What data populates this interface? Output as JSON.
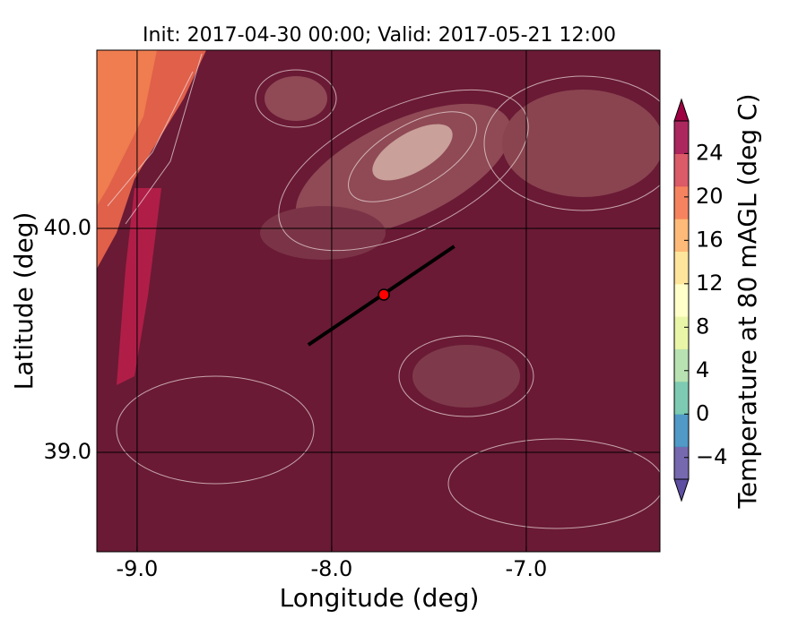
{
  "chart_data": {
    "type": "map",
    "title": "Init: 2017-04-30 00:00; Valid: 2017-05-21 12:00",
    "x_label": "Longitude (deg)",
    "y_label": "Latitude (deg)",
    "xlim": [
      -9.207,
      -6.313
    ],
    "ylim": [
      38.556,
      40.796
    ],
    "xticks": [
      {
        "value": -9,
        "label": "-9.0"
      },
      {
        "value": -8,
        "label": "-8.0"
      },
      {
        "value": -7,
        "label": "-7.0"
      }
    ],
    "yticks": [
      {
        "value": 39,
        "label": "39.0"
      },
      {
        "value": 40,
        "label": "40.0"
      }
    ],
    "grid": true,
    "cross_section": {
      "x": [
        -8.12,
        -7.37
      ],
      "y": [
        39.48,
        39.92
      ],
      "color": "#000000"
    },
    "point": {
      "x": -7.732,
      "y": 39.704,
      "color": "#ff0000"
    },
    "colorbar": {
      "label": "Temperature at 80 mAGL (deg C)",
      "lim": [
        -6,
        27
      ],
      "ticks": [
        {
          "value": -4,
          "label": "−4"
        },
        0,
        4,
        8,
        12,
        16,
        20,
        24
      ],
      "colors": [
        "#5e4fa2",
        "#3288bd",
        "#66c2a5",
        "#abdda4",
        "#e6f598",
        "#ffffbf",
        "#fee08b",
        "#fdae61",
        "#f46d43",
        "#d53e4f",
        "#9e0142"
      ]
    }
  }
}
